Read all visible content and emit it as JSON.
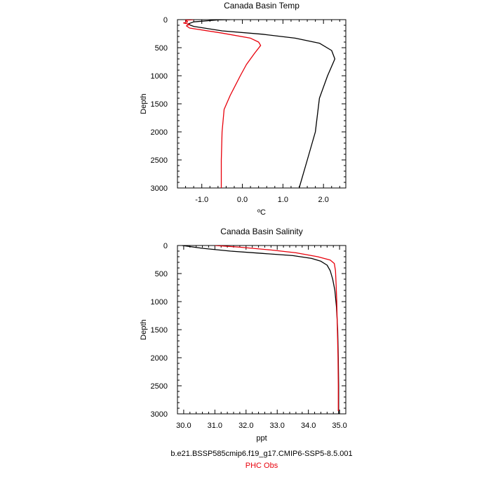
{
  "chart_data": [
    {
      "type": "line",
      "title": "Canada Basin Temp",
      "xlabel": "ºC",
      "ylabel": "Depth",
      "xlim": [
        -1.6,
        2.55
      ],
      "ylim": [
        3000,
        0
      ],
      "y_reversed": true,
      "xticks": [
        -1.0,
        0.0,
        1.0,
        2.0
      ],
      "xtick_labels": [
        "-1.0",
        "0.0",
        "1.0",
        "2.0"
      ],
      "yticks": [
        0,
        500,
        1000,
        1500,
        2000,
        2500,
        3000
      ],
      "ytick_labels": [
        "0",
        "500",
        "1000",
        "1500",
        "2000",
        "2500",
        "3000"
      ],
      "grid": false,
      "series": [
        {
          "color": "#000000",
          "points": [
            [
              -0.3,
              0
            ],
            [
              -0.6,
              5
            ],
            [
              -1.2,
              40
            ],
            [
              -1.35,
              80
            ],
            [
              -1.2,
              120
            ],
            [
              -0.5,
              200
            ],
            [
              0.5,
              260
            ],
            [
              1.3,
              330
            ],
            [
              1.9,
              420
            ],
            [
              2.2,
              550
            ],
            [
              2.28,
              700
            ],
            [
              2.1,
              1000
            ],
            [
              1.9,
              1400
            ],
            [
              1.8,
              2000
            ],
            [
              1.6,
              2500
            ],
            [
              1.4,
              3000
            ]
          ]
        },
        {
          "color": "#e8000b",
          "points": [
            [
              -1.2,
              0
            ],
            [
              -1.4,
              10
            ],
            [
              -1.35,
              40
            ],
            [
              -1.45,
              60
            ],
            [
              -1.3,
              85
            ],
            [
              -1.38,
              110
            ],
            [
              -1.3,
              150
            ],
            [
              -0.5,
              240
            ],
            [
              0.2,
              330
            ],
            [
              0.4,
              400
            ],
            [
              0.45,
              460
            ],
            [
              0.3,
              600
            ],
            [
              0.1,
              800
            ],
            [
              -0.05,
              1000
            ],
            [
              -0.3,
              1350
            ],
            [
              -0.45,
              1600
            ],
            [
              -0.5,
              2000
            ],
            [
              -0.52,
              2500
            ],
            [
              -0.52,
              3000
            ]
          ]
        }
      ]
    },
    {
      "type": "line",
      "title": "Canada Basin Salinity",
      "xlabel": "ppt",
      "ylabel": "Depth",
      "xlim": [
        29.8,
        35.2
      ],
      "ylim": [
        3000,
        0
      ],
      "y_reversed": true,
      "xticks": [
        30.0,
        31.0,
        32.0,
        33.0,
        34.0,
        35.0
      ],
      "xtick_labels": [
        "30.0",
        "31.0",
        "32.0",
        "33.0",
        "34.0",
        "35.0"
      ],
      "yticks": [
        0,
        500,
        1000,
        1500,
        2000,
        2500,
        3000
      ],
      "ytick_labels": [
        "0",
        "500",
        "1000",
        "1500",
        "2000",
        "2500",
        "3000"
      ],
      "grid": false,
      "series": [
        {
          "color": "#000000",
          "points": [
            [
              29.95,
              0
            ],
            [
              30.6,
              50
            ],
            [
              31.5,
              100
            ],
            [
              32.5,
              140
            ],
            [
              33.5,
              180
            ],
            [
              34.1,
              230
            ],
            [
              34.4,
              280
            ],
            [
              34.6,
              350
            ],
            [
              34.7,
              450
            ],
            [
              34.78,
              600
            ],
            [
              34.85,
              800
            ],
            [
              34.9,
              1100
            ],
            [
              34.94,
              1500
            ],
            [
              34.96,
              2000
            ],
            [
              34.97,
              2500
            ],
            [
              34.97,
              3000
            ]
          ]
        },
        {
          "color": "#e8000b",
          "points": [
            [
              31.0,
              0
            ],
            [
              31.8,
              30
            ],
            [
              32.8,
              80
            ],
            [
              33.6,
              130
            ],
            [
              34.3,
              200
            ],
            [
              34.7,
              260
            ],
            [
              34.83,
              320
            ],
            [
              34.87,
              450
            ],
            [
              34.89,
              700
            ],
            [
              34.91,
              1000
            ],
            [
              34.93,
              1500
            ],
            [
              34.95,
              2000
            ],
            [
              34.96,
              2500
            ],
            [
              34.96,
              2950
            ]
          ]
        }
      ]
    }
  ],
  "footer": {
    "case_name": "b.e21.BSSP585cmip6.f19_g17.CMIP6-SSP5-8.5.001",
    "obs_name": "PHC Obs",
    "case_color": "#000000",
    "obs_color": "#e8000b"
  }
}
